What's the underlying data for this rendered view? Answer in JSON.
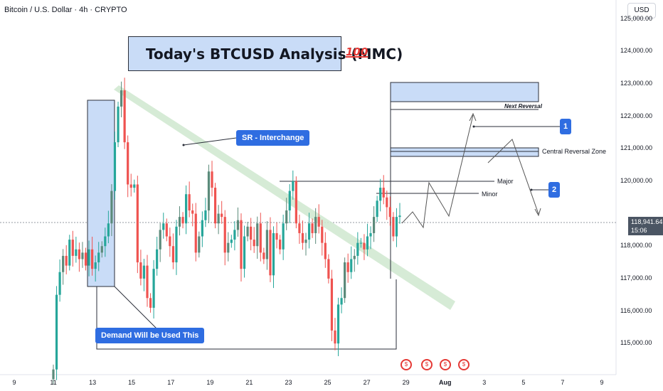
{
  "header": {
    "title": "Bitcoin / U.S. Dollar · 4h · CRYPTO",
    "currency": "USD"
  },
  "annotations": {
    "analysis_title": "Today's BTCUSD Analysis (MMC)",
    "emoji": "100",
    "sr_interchange": "SR - Interchange",
    "demand": "Demand Will be Used This",
    "next_reversal": "Next Reversal",
    "central_reversal_zone": "Central Reversal Zone",
    "major": "Major",
    "minor": "Minor",
    "badge_1": "1",
    "badge_2": "2"
  },
  "colors": {
    "up_candle": "#26a69a",
    "up_candle_dark": "#5b8a7a",
    "down_candle": "#ef5350",
    "zone_fill": "#c9dcf7",
    "trend_band": "#cfe8cf",
    "label_blue": "#2f6de1",
    "current_price_bg": "#4b5563"
  },
  "chart_data": {
    "type": "candlestick",
    "title": "Bitcoin / U.S. Dollar · 4h · CRYPTO",
    "y_axis_labels": [
      "125,000.00",
      "124,000.00",
      "123,000.00",
      "122,000.00",
      "121,000.00",
      "120,000.00",
      "118,000.00",
      "117,000.00",
      "116,000.00",
      "115,000.00"
    ],
    "y_ticks": [
      125000,
      124000,
      123000,
      122000,
      121000,
      120000,
      118000,
      117000,
      116000,
      115000
    ],
    "ylim": [
      114040,
      125540
    ],
    "current_price": "118,941.64",
    "countdown": "15:06",
    "x_labels": [
      "9",
      "11",
      "13",
      "15",
      "17",
      "19",
      "21",
      "23",
      "25",
      "27",
      "29",
      "Aug",
      "3",
      "5",
      "7",
      "9"
    ],
    "x_ticks_day": [
      9,
      11,
      13,
      15,
      17,
      19,
      21,
      23,
      25,
      27,
      29,
      31,
      33,
      35,
      37,
      39
    ],
    "grid": false,
    "candles_close_estimate": [
      114200,
      116500,
      117200,
      117700,
      117400,
      118200,
      117700,
      117900,
      117600,
      117800,
      117400,
      117900,
      117300,
      117500,
      117800,
      118000,
      118300,
      118700,
      119700,
      121200,
      122300,
      122800,
      121200,
      119900,
      119800,
      119900,
      117500,
      117000,
      117400,
      116400,
      116100,
      117300,
      117900,
      118500,
      118700,
      118300,
      118000,
      117500,
      118600,
      118900,
      118700,
      119600,
      119100,
      119000,
      117800,
      118300,
      118800,
      119100,
      120300,
      119800,
      118700,
      119000,
      118900,
      117800,
      118100,
      118200,
      118500,
      118800,
      117300,
      118300,
      118600,
      118200,
      118000,
      118700,
      117800,
      117600,
      118500,
      117100,
      118400,
      118200,
      117900,
      118700,
      119100,
      119700,
      120000,
      118700,
      118400,
      118100,
      118200,
      118700,
      118400,
      118900,
      118600,
      118100,
      117600,
      117000,
      115400,
      115000,
      116200,
      116400,
      117500,
      117200,
      117600,
      117700,
      118100,
      118100,
      117900,
      118300,
      118400,
      118900,
      119400,
      119800,
      119500,
      119200,
      118900,
      118300,
      118900,
      118941
    ]
  }
}
